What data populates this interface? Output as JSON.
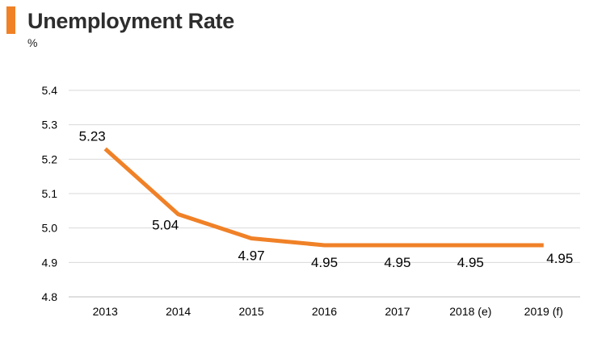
{
  "title": "Unemployment Rate",
  "unit": "%",
  "accent_color": "#f08127",
  "chart_data": {
    "type": "line",
    "categories": [
      "2013",
      "2014",
      "2015",
      "2016",
      "2017",
      "2018 (e)",
      "2019 (f)"
    ],
    "series": [
      {
        "values": [
          5.23,
          5.04,
          4.97,
          4.95,
          4.95,
          4.95,
          4.95
        ]
      }
    ],
    "data_labels": [
      "5.23",
      "5.04",
      "4.97",
      "4.95",
      "4.95",
      "4.95",
      "4.95"
    ],
    "yticks": [
      "4.8",
      "4.9",
      "5.0",
      "5.1",
      "5.2",
      "5.3",
      "5.4"
    ],
    "ylim": [
      4.8,
      5.4
    ],
    "grid": true,
    "legend": "none",
    "line_color": "#f08127"
  }
}
